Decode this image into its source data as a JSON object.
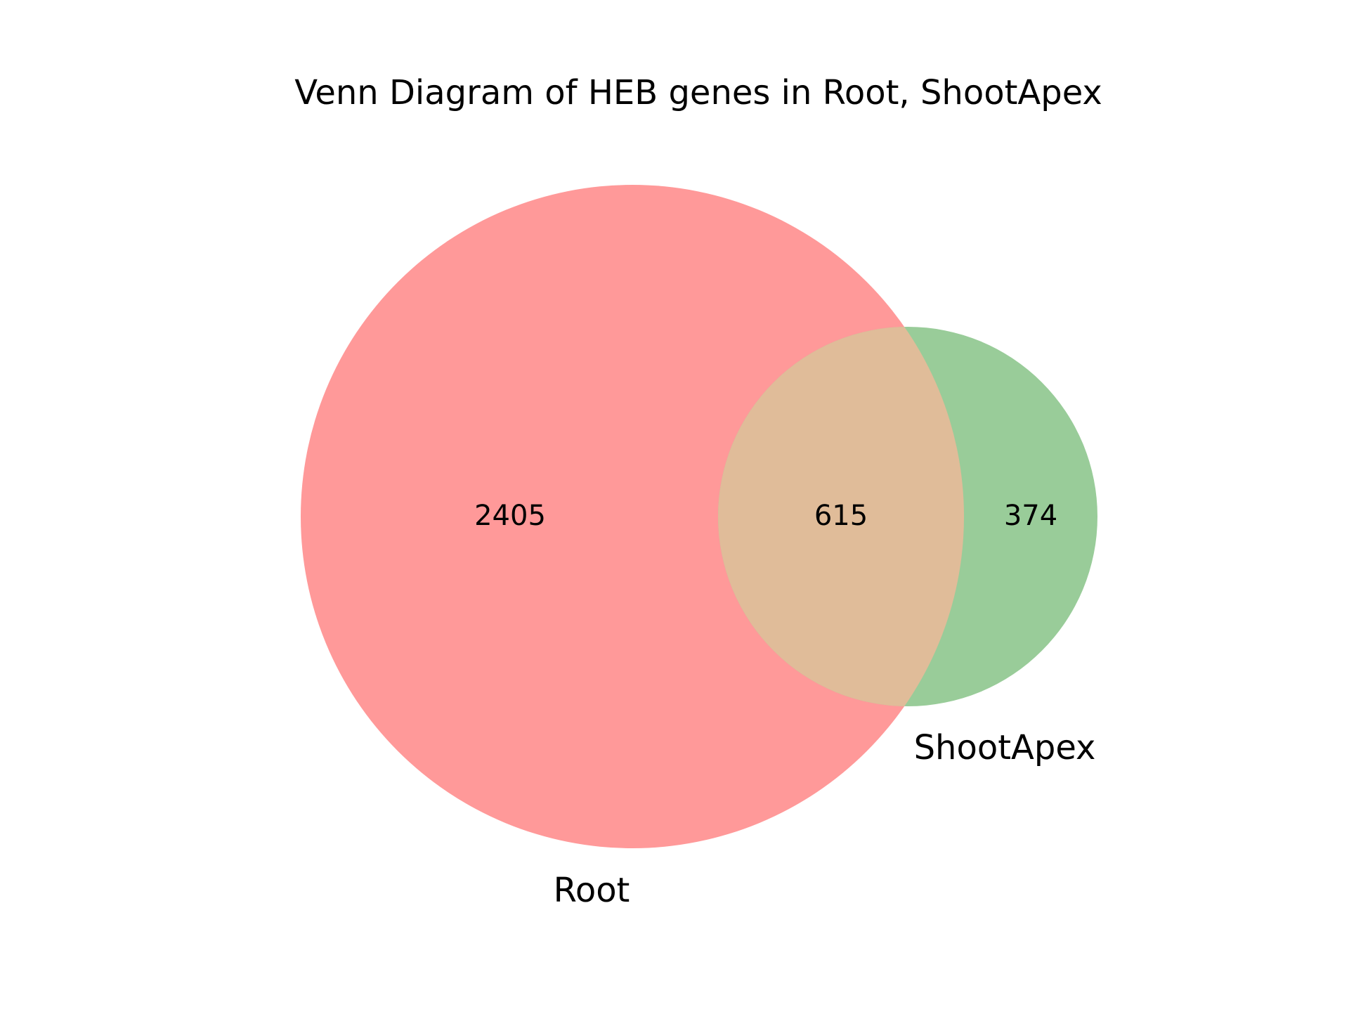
{
  "title": "Venn Diagram of HEB genes in Root, ShootApex",
  "sets": [
    {
      "name": "Root",
      "color": "#ff9999"
    },
    {
      "name": "ShootApex",
      "color": "#99cc99"
    }
  ],
  "colors": {
    "root_only": "#ff9999",
    "shootapex_only": "#99cc99",
    "overlap": "#e0bc99",
    "background": "#ffffff"
  },
  "counts": {
    "root_only": "2405",
    "overlap": "615",
    "shootapex_only": "374"
  }
}
